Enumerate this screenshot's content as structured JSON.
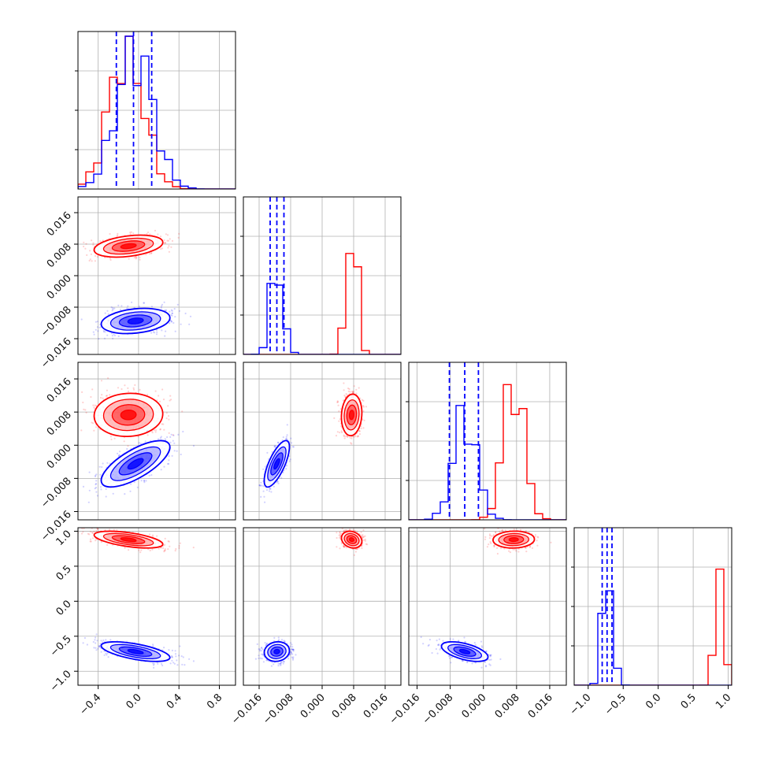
{
  "colors": {
    "series_red": "#ff0000",
    "series_blue": "#0000ff",
    "grid": "#b0b0b0",
    "frame": "#000000"
  },
  "chart_data": {
    "type": "corner",
    "grid": true,
    "series": [
      {
        "color": "#ff0000"
      },
      {
        "color": "#0000ff"
      }
    ],
    "quantile_lines": {
      "color": "#0000ff",
      "style": "dashed"
    },
    "params": [
      {
        "range": [
          -0.6,
          0.96
        ],
        "ticks": [
          -0.4,
          0.0,
          0.4,
          0.8
        ],
        "tick_labels": [
          "−0.4",
          "0.0",
          "0.4",
          "0.8"
        ],
        "marginal_ylim": [
          0,
          2.9
        ],
        "series": [
          {
            "center": -0.12,
            "spread": 0.17,
            "peak": 2.6
          },
          {
            "center": -0.04,
            "spread": 0.18,
            "peak": 2.55
          }
        ],
        "quantiles": [
          -0.22,
          -0.05,
          0.13
        ]
      },
      {
        "range": [
          -0.02,
          0.02
        ],
        "ticks": [
          -0.016,
          -0.008,
          0.0,
          0.008,
          0.016
        ],
        "tick_labels": [
          "−0.016",
          "−0.008",
          "0.000",
          "0.008",
          "0.016"
        ],
        "marginal_ylim": [
          0,
          1.0
        ],
        "series": [
          {
            "center": 0.0075,
            "spread": 0.0013,
            "peak": 0.92
          },
          {
            "center": -0.0115,
            "spread": 0.0016,
            "peak": 0.56
          }
        ],
        "quantiles": [
          -0.0132,
          -0.0115,
          -0.0097
        ]
      },
      {
        "range": [
          -0.018,
          0.02
        ],
        "ticks": [
          -0.016,
          -0.008,
          0.0,
          0.008,
          0.016
        ],
        "tick_labels": [
          "−0.016",
          "−0.008",
          "0.000",
          "0.008",
          "0.016"
        ],
        "marginal_ylim": [
          0,
          1.0
        ],
        "series": [
          {
            "center": 0.0073,
            "spread": 0.0025,
            "peak": 0.9
          },
          {
            "center": -0.0045,
            "spread": 0.0028,
            "peak": 0.66
          }
        ],
        "quantiles": [
          -0.0082,
          -0.0045,
          -0.0012
        ]
      },
      {
        "range": [
          -1.2,
          1.05
        ],
        "ticks": [
          -1.0,
          -0.5,
          0.0,
          0.5,
          1.0
        ],
        "tick_labels": [
          "−1.0",
          "−0.5",
          "0.0",
          "0.5",
          "1.0"
        ],
        "marginal_ylim": [
          0,
          1.0
        ],
        "series": [
          {
            "center": 0.88,
            "spread": 0.06,
            "peak": 0.85
          },
          {
            "center": -0.72,
            "spread": 0.07,
            "peak": 0.78
          }
        ],
        "quantiles": [
          -0.8,
          -0.73,
          -0.66
        ]
      }
    ],
    "pairs": [
      {
        "x": 0,
        "y": 1,
        "series": [
          {
            "center": [
              -0.1,
              0.0075
            ],
            "spread": [
              0.17,
              0.0014
            ],
            "rho": 0.35
          },
          {
            "center": [
              -0.03,
              -0.0115
            ],
            "spread": [
              0.17,
              0.0016
            ],
            "rho": 0.25
          }
        ]
      },
      {
        "x": 0,
        "y": 2,
        "series": [
          {
            "center": [
              -0.1,
              0.0073
            ],
            "spread": [
              0.17,
              0.0026
            ],
            "rho": 0.05
          },
          {
            "center": [
              -0.03,
              -0.0045
            ],
            "spread": [
              0.17,
              0.0028
            ],
            "rho": 0.72
          }
        ]
      },
      {
        "x": 1,
        "y": 2,
        "series": [
          {
            "center": [
              0.0075,
              0.0073
            ],
            "spread": [
              0.0013,
              0.0025
            ],
            "rho": 0.1
          },
          {
            "center": [
              -0.0115,
              -0.0045
            ],
            "spread": [
              0.0016,
              0.0028
            ],
            "rho": 0.72
          }
        ]
      },
      {
        "x": 0,
        "y": 3,
        "series": [
          {
            "center": [
              -0.1,
              0.88
            ],
            "spread": [
              0.17,
              0.06
            ],
            "rho": -0.55
          },
          {
            "center": [
              -0.03,
              -0.72
            ],
            "spread": [
              0.17,
              0.07
            ],
            "rho": -0.6
          }
        ]
      },
      {
        "x": 1,
        "y": 3,
        "series": [
          {
            "center": [
              0.0075,
              0.88
            ],
            "spread": [
              0.0013,
              0.06
            ],
            "rho": -0.2
          },
          {
            "center": [
              -0.0115,
              -0.72
            ],
            "spread": [
              0.0016,
              0.07
            ],
            "rho": 0.1
          }
        ]
      },
      {
        "x": 2,
        "y": 3,
        "series": [
          {
            "center": [
              0.0073,
              0.88
            ],
            "spread": [
              0.0025,
              0.06
            ],
            "rho": 0.05
          },
          {
            "center": [
              -0.0045,
              -0.72
            ],
            "spread": [
              0.0028,
              0.07
            ],
            "rho": -0.55
          }
        ]
      }
    ]
  }
}
